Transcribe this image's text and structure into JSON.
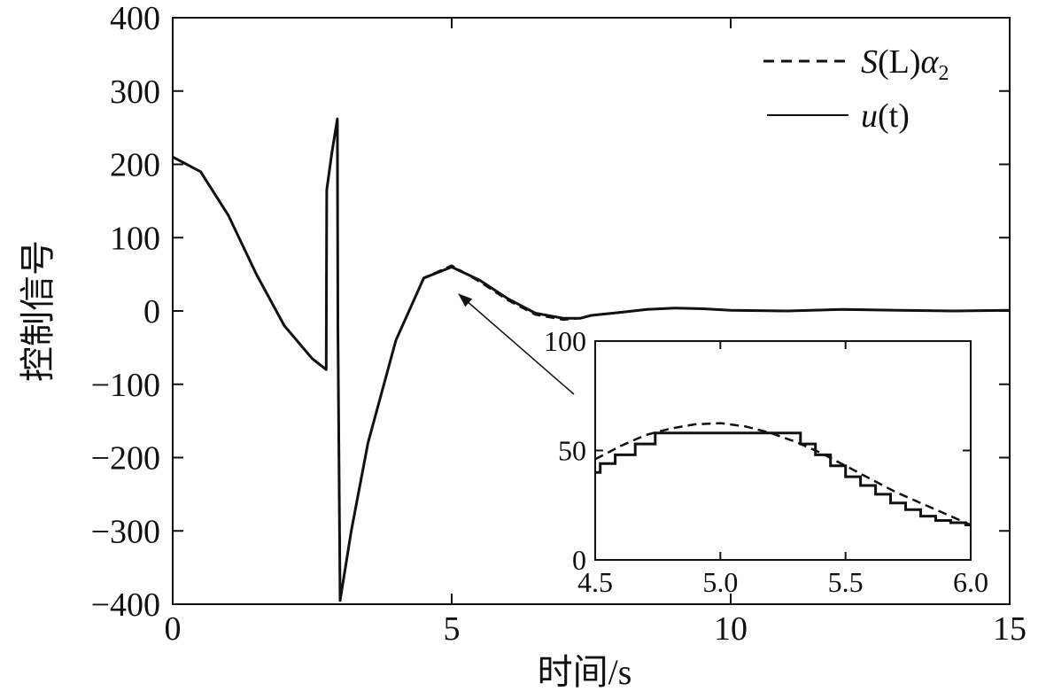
{
  "chart_data": {
    "type": "line",
    "title": "",
    "xlabel": "时间/s",
    "ylabel": "控制信号",
    "xlim": [
      0,
      15
    ],
    "ylim": [
      -400,
      400
    ],
    "xticks": [
      "0",
      "5",
      "10",
      "15"
    ],
    "yticks": [
      "400",
      "300",
      "200",
      "100",
      "0",
      "−100",
      "−200",
      "−300",
      "−400"
    ],
    "grid": false,
    "legend_position": "top-right",
    "legend": [
      {
        "key": "s_alpha",
        "style": "dashed",
        "label_main": "S",
        "label_paren": "(L)",
        "label_greek": "α",
        "label_sub": "2"
      },
      {
        "key": "u",
        "style": "solid",
        "label_main": "u",
        "label_paren": "(t)"
      }
    ],
    "series": [
      {
        "key": "s_alpha",
        "style": "dashed",
        "x": [
          0,
          0.5,
          1,
          1.5,
          2,
          2.5,
          2.75,
          2.76,
          2.85,
          2.95,
          2.96,
          3.0,
          3.2,
          3.5,
          4.0,
          4.5,
          5.0,
          5.5,
          6.0,
          6.5,
          7.0,
          7.3,
          7.5,
          8.0,
          8.5,
          9.0,
          9.5,
          10.0,
          11.0,
          12.0,
          13.0,
          14.0,
          15.0
        ],
        "y": [
          210,
          190,
          130,
          50,
          -20,
          -65,
          -80,
          165,
          215,
          262,
          -20,
          -395,
          -300,
          -180,
          -40,
          45,
          62,
          40,
          15,
          -5,
          -12,
          -10,
          -6,
          -2,
          2,
          4,
          3,
          1,
          0,
          2,
          1,
          0,
          1
        ]
      },
      {
        "key": "u",
        "style": "solid",
        "x": [
          0,
          0.5,
          1,
          1.5,
          2,
          2.5,
          2.75,
          2.76,
          2.85,
          2.95,
          2.96,
          3.0,
          3.2,
          3.5,
          4.0,
          4.5,
          5.0,
          5.5,
          6.0,
          6.5,
          7.0,
          7.3,
          7.5,
          8.0,
          8.5,
          9.0,
          9.5,
          10.0,
          11.0,
          12.0,
          13.0,
          14.0,
          15.0
        ],
        "y": [
          210,
          190,
          130,
          50,
          -20,
          -65,
          -80,
          165,
          215,
          262,
          -20,
          -395,
          -300,
          -180,
          -40,
          45,
          60,
          42,
          17,
          -3,
          -10,
          -10,
          -6,
          -2,
          2,
          4,
          3,
          1,
          0,
          2,
          1,
          0,
          1
        ]
      }
    ],
    "inset": {
      "xlim": [
        4.5,
        6.0
      ],
      "ylim": [
        0,
        100
      ],
      "xticks": [
        "4.5",
        "5.0",
        "5.5",
        "6.0"
      ],
      "yticks": [
        "100",
        "50",
        "0"
      ],
      "series": [
        {
          "key": "s_alpha",
          "style": "dashed",
          "x": [
            4.5,
            4.6,
            4.7,
            4.8,
            4.9,
            5.0,
            5.1,
            5.2,
            5.3,
            5.4,
            5.5,
            5.6,
            5.7,
            5.8,
            5.9,
            6.0
          ],
          "y": [
            46,
            52,
            57,
            60,
            62,
            62.5,
            61,
            58,
            54,
            49,
            43,
            37,
            31,
            26,
            21,
            16
          ]
        },
        {
          "key": "u",
          "style": "step",
          "x": [
            4.5,
            4.52,
            4.58,
            4.66,
            4.74,
            5.25,
            5.32,
            5.38,
            5.44,
            5.5,
            5.56,
            5.62,
            5.68,
            5.74,
            5.8,
            5.86,
            5.92,
            5.98,
            6.0
          ],
          "y": [
            40,
            44,
            48,
            53,
            58,
            58,
            53,
            48,
            43,
            38,
            34,
            30,
            26,
            23,
            20,
            18,
            17,
            16,
            16
          ]
        }
      ]
    }
  }
}
